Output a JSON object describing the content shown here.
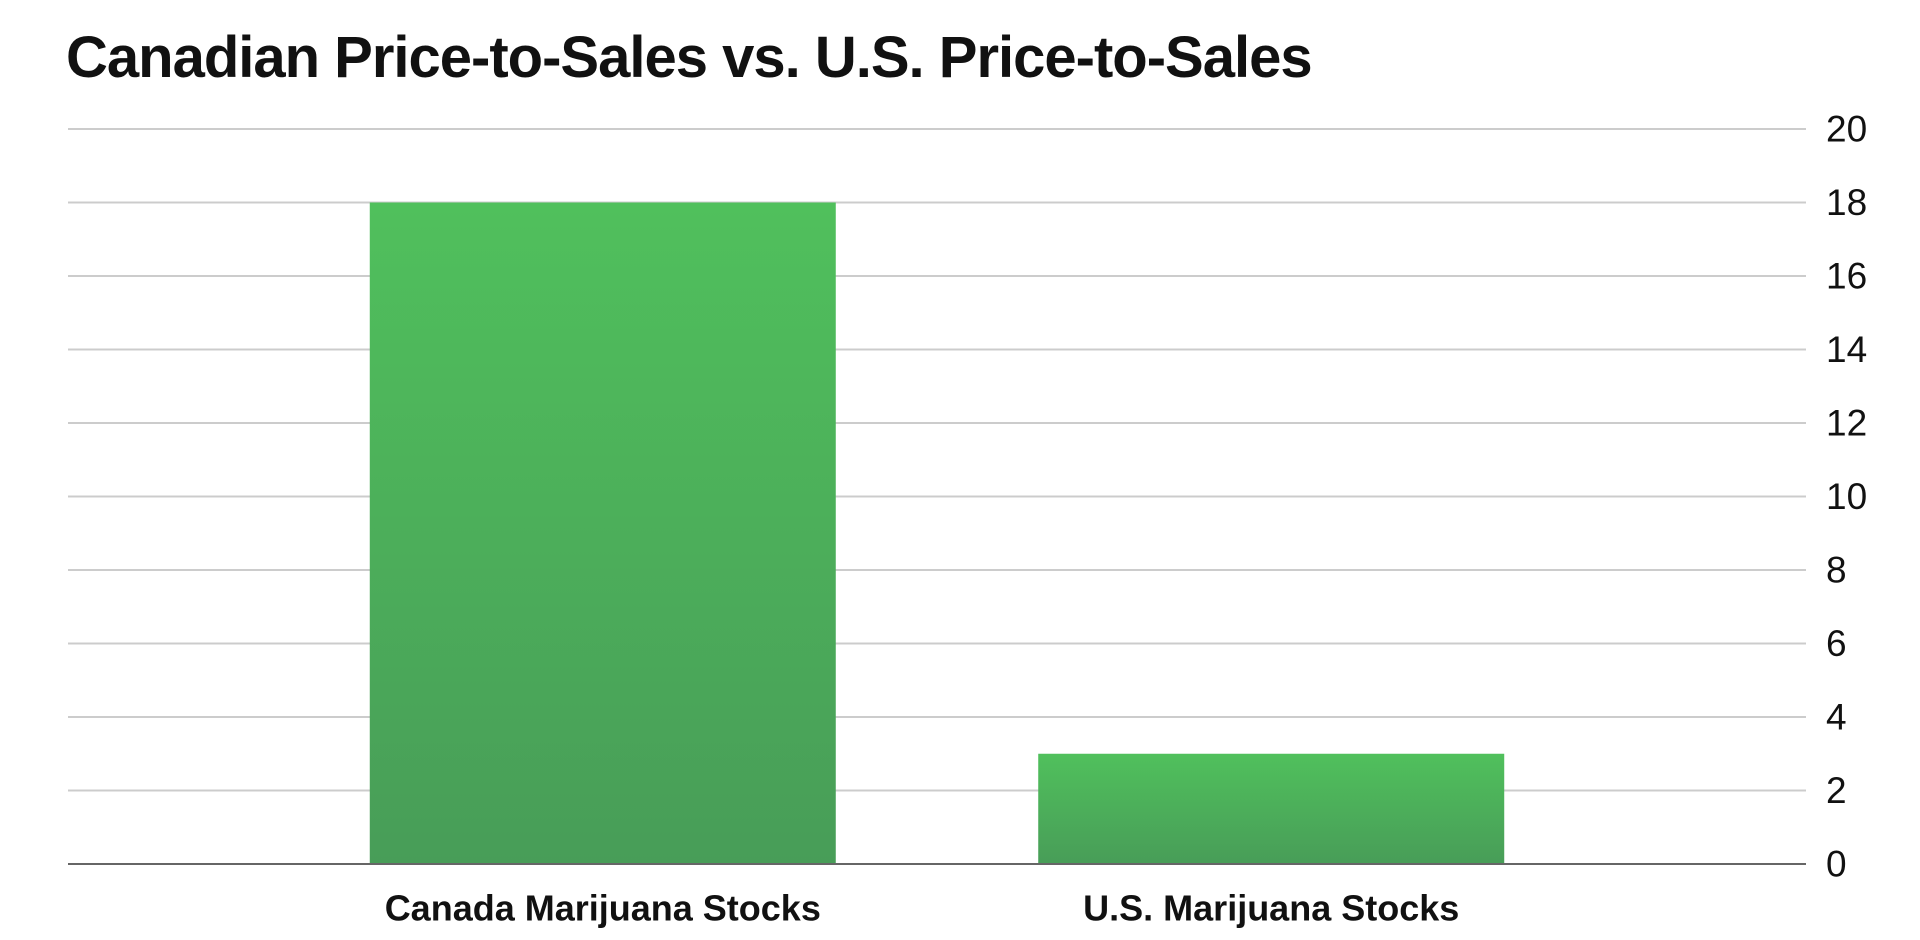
{
  "chart_data": {
    "type": "bar",
    "title": "Canadian Price-to-Sales vs. U.S. Price-to-Sales",
    "categories": [
      "Canada Marijuana Stocks",
      "U.S. Marijuana Stocks"
    ],
    "values": [
      18,
      3
    ],
    "xlabel": "",
    "ylabel": "",
    "ylim": [
      0,
      20
    ],
    "yticks": [
      "0",
      "2",
      "4",
      "6",
      "8",
      "10",
      "12",
      "14",
      "16",
      "18",
      "20"
    ],
    "y_axis_side": "right",
    "grid": true,
    "legend": "none",
    "colors": {
      "bar_top": "#50c05c",
      "bar_bottom": "#489d58",
      "grid": "#cccccc",
      "axis": "#666666",
      "text": "#111111"
    }
  }
}
